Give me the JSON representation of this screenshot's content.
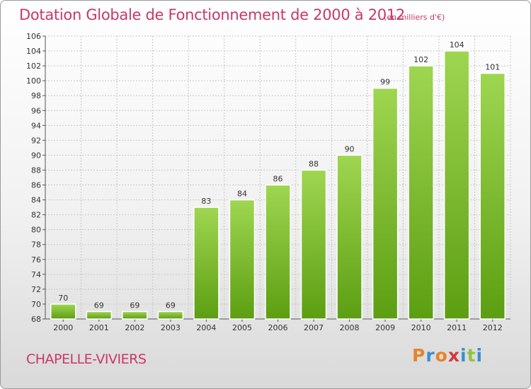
{
  "chart_data": {
    "type": "bar",
    "title": "Dotation Globale de Fonctionnement de 2000 à 2012",
    "unit_note": "(en milliers d'€)",
    "categories": [
      "2000",
      "2001",
      "2002",
      "2003",
      "2004",
      "2005",
      "2006",
      "2007",
      "2008",
      "2009",
      "2010",
      "2011",
      "2012"
    ],
    "values": [
      70,
      69,
      69,
      69,
      83,
      84,
      86,
      88,
      90,
      99,
      102,
      104,
      101
    ],
    "ylim": [
      68,
      106
    ],
    "yticks": [
      68,
      70,
      72,
      74,
      76,
      78,
      80,
      82,
      84,
      86,
      88,
      90,
      92,
      94,
      96,
      98,
      100,
      102,
      104,
      106
    ],
    "grid": true,
    "bar_color": "#7cbf2e"
  },
  "footer": {
    "commune": "CHAPELLE-VIVIERS",
    "logo_text": "Proxiti",
    "logo_colors": [
      "#e8832a",
      "#3a8fd0",
      "#e8832a",
      "#d23a3a",
      "#3a8fd0",
      "#8cc63f",
      "#3a8fd0"
    ]
  }
}
